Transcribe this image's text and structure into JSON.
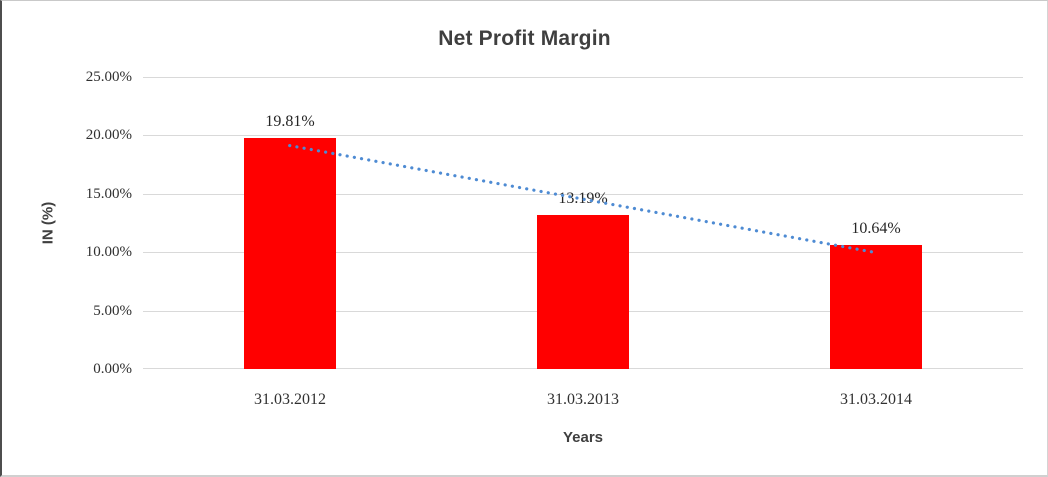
{
  "chart_data": {
    "type": "bar",
    "title": "Net Profit Margin",
    "xlabel": "Years",
    "ylabel": "IN (%)",
    "categories": [
      "31.03.2012",
      "31.03.2013",
      "31.03.2014"
    ],
    "values": [
      19.81,
      13.19,
      10.64
    ],
    "value_labels": [
      "19.81%",
      "13.19%",
      "10.64%"
    ],
    "y_tick_values": [
      0,
      5,
      10,
      15,
      20,
      25
    ],
    "y_tick_labels": [
      "0.00%",
      "5.00%",
      "10.00%",
      "15.00%",
      "20.00%",
      "25.00%"
    ],
    "ylim": [
      0,
      25
    ],
    "grid": true,
    "legend": "none",
    "bar_color": "#ff0000",
    "trendline": {
      "type": "linear",
      "style": "dotted",
      "color": "#4e8bd3",
      "start_value": 19.13,
      "end_value": 9.96
    },
    "colors": {
      "background": "#ffffff",
      "gridline": "#d9d9d9",
      "text": "#3f3f3f"
    }
  }
}
